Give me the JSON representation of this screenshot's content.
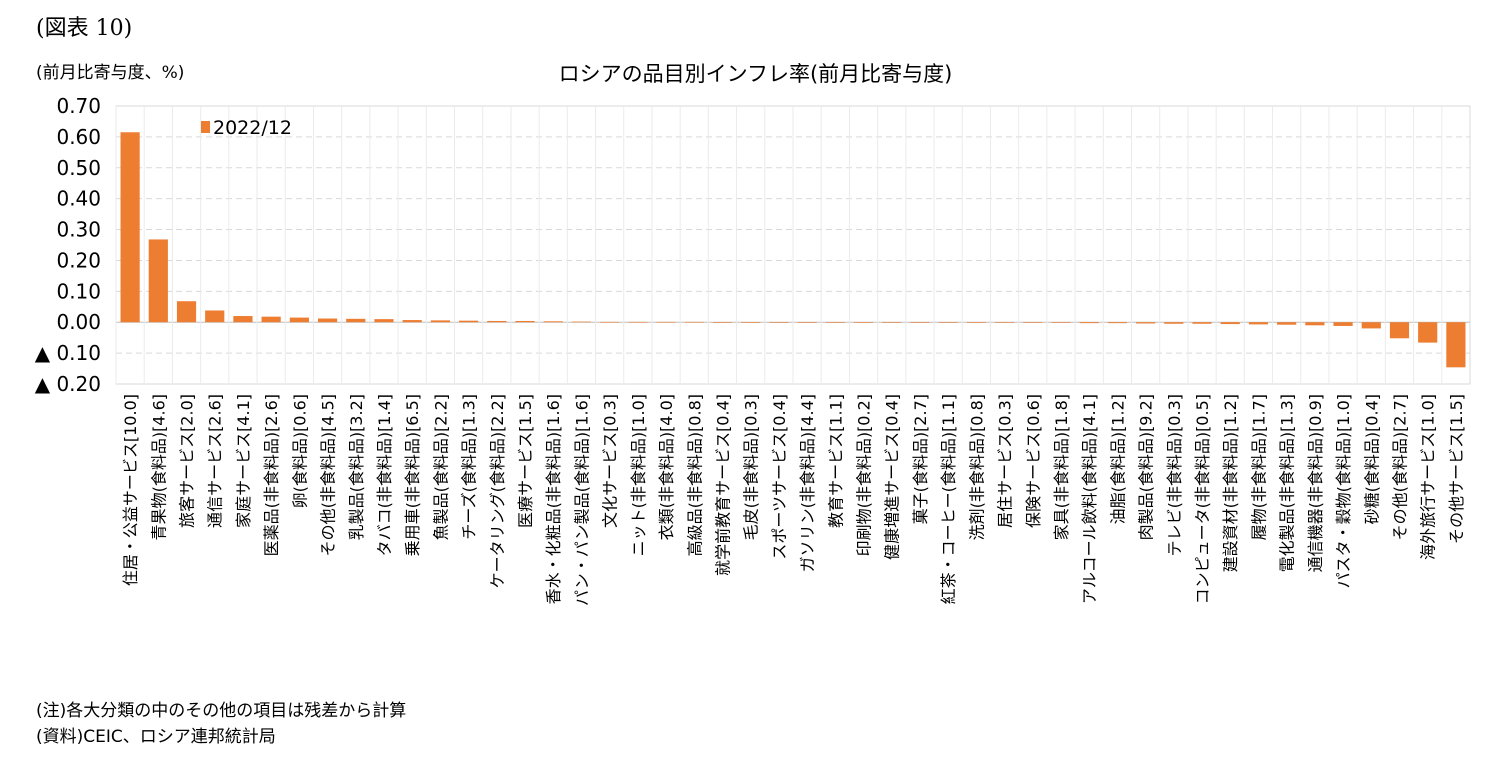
{
  "figure_label": "(図表 10)",
  "note": "(注)各大分類の中のその他の項目は残差から計算",
  "source": "(資料)CEIC、ロシア連邦統計局",
  "colors": {
    "bar": "#ED7D31",
    "grid": "#D9D9D9",
    "axis": "#BFBFBF"
  },
  "chart_data": {
    "type": "bar",
    "title": "ロシアの品目別インフレ率(前月比寄与度)",
    "ylabel": "(前月比寄与度、%)",
    "xlabel": "",
    "ylim": [
      -0.2,
      0.7
    ],
    "yticks": [
      0.7,
      0.6,
      0.5,
      0.4,
      0.3,
      0.2,
      0.1,
      0.0,
      -0.1,
      -0.2
    ],
    "ytick_labels": [
      "0.70",
      "0.60",
      "0.50",
      "0.40",
      "0.30",
      "0.20",
      "0.10",
      "0.00",
      "▲ 0.10",
      "▲ 0.20"
    ],
    "grid": true,
    "legend_position": "top-left",
    "categories": [
      "住居・公益サービス[10.0]",
      "青果物(食料品)[4.6]",
      "旅客サービス[2.0]",
      "通信サービス[2.6]",
      "家庭サービス[4.1]",
      "医薬品(非食料品)[2.6]",
      "卵(食料品)[0.6]",
      "その他(非食料品)[4.5]",
      "乳製品(食料品)[3.2]",
      "タバコ(非食料品)[1.4]",
      "乗用車(非食料品)[6.5]",
      "魚製品(食料品)[2.2]",
      "チーズ(食料品)[1.3]",
      "ケータリング(食料品)[2.2]",
      "医療サービス[1.5]",
      "香水・化粧品(非食料品)[1.6]",
      "パン・パン製品(食料品)[1.6]",
      "文化サービス[0.3]",
      "ニット(非食料品)[1.0]",
      "衣類(非食料品)[4.0]",
      "高級品(非食料品)[0.8]",
      "就学前教育サービス[0.4]",
      "毛皮(非食料品)[0.3]",
      "スポーツサービス[0.4]",
      "ガソリン(非食料品)[4.4]",
      "教育サービス[1.1]",
      "印刷物(非食料品)[0.2]",
      "健康増進サービス[0.4]",
      "菓子(食料品)[2.7]",
      "紅茶・コーヒー(食料品)[1.1]",
      "洗剤(非食料品)[0.8]",
      "居住サービス[0.3]",
      "保険サービス[0.6]",
      "家具(非食料品)[1.8]",
      "アルコール飲料(食料品)[4.1]",
      "油脂(食料品)[1.2]",
      "肉製品(食料品)[9.2]",
      "テレビ(非食料品)[0.3]",
      "コンピュータ(非食料品)[0.5]",
      "建設資材(非食料品)[1.2]",
      "履物(非食料品)[1.7]",
      "電化製品(非食料品)[1.3]",
      "通信機器(非食料品)[0.9]",
      "パスタ・穀物(食料品)[1.0]",
      "砂糖(食料品)[0.4]",
      "その他(食料品)[2.7]",
      "海外旅行サービス[1.0]",
      "その他サービス[1.5]"
    ],
    "series": [
      {
        "name": "2022/12",
        "values": [
          0.615,
          0.268,
          0.068,
          0.038,
          0.02,
          0.018,
          0.015,
          0.012,
          0.011,
          0.01,
          0.007,
          0.006,
          0.005,
          0.004,
          0.004,
          0.003,
          0.002,
          0.001,
          0.001,
          0.001,
          0.001,
          0.0,
          0.0,
          0.0,
          0.0,
          0.0,
          0.0,
          0.0,
          0.0,
          0.0,
          0.0,
          -0.001,
          -0.001,
          -0.002,
          -0.003,
          -0.003,
          -0.004,
          -0.005,
          -0.005,
          -0.006,
          -0.007,
          -0.008,
          -0.01,
          -0.012,
          -0.02,
          -0.052,
          -0.066,
          -0.146
        ]
      }
    ]
  }
}
